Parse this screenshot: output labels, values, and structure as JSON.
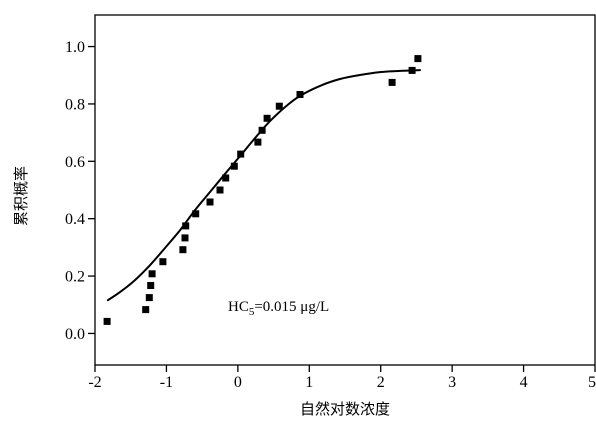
{
  "chart_data": {
    "type": "scatter",
    "xlabel": "自然对数浓度",
    "ylabel": "累积概率",
    "xlim": [
      -2,
      5
    ],
    "ylim": [
      -0.11,
      1.11
    ],
    "xticks": [
      "-2",
      "-1",
      "0",
      "1",
      "2",
      "3",
      "4",
      "5"
    ],
    "yticks": [
      "0.0",
      "0.2",
      "0.4",
      "0.6",
      "0.8",
      "1.0"
    ],
    "grid": false,
    "annotation": {
      "main": "HC",
      "subscript": "5",
      "rest": "=0.015 μg/L"
    },
    "series": [
      {
        "type": "scatter",
        "x": [
          -1.83,
          -1.29,
          -1.24,
          -1.22,
          -1.2,
          -1.05,
          -0.77,
          -0.74,
          -0.73,
          -0.59,
          -0.39,
          -0.25,
          -0.17,
          -0.05,
          0.04,
          0.28,
          0.34,
          0.41,
          0.58,
          0.87,
          2.16,
          2.44,
          2.52
        ],
        "y": [
          0.042,
          0.083,
          0.125,
          0.167,
          0.208,
          0.25,
          0.292,
          0.333,
          0.375,
          0.417,
          0.458,
          0.5,
          0.542,
          0.583,
          0.625,
          0.667,
          0.708,
          0.75,
          0.792,
          0.833,
          0.875,
          0.917,
          0.958
        ]
      },
      {
        "type": "line",
        "x": [
          -1.82,
          -1.65,
          -1.44,
          -1.23,
          -1.02,
          -0.81,
          -0.6,
          -0.39,
          -0.18,
          0.03,
          0.24,
          0.45,
          0.66,
          0.87,
          1.15,
          1.43,
          1.71,
          1.99,
          2.27,
          2.55
        ],
        "y": [
          0.116,
          0.144,
          0.186,
          0.238,
          0.298,
          0.36,
          0.43,
          0.493,
          0.556,
          0.618,
          0.681,
          0.74,
          0.789,
          0.828,
          0.863,
          0.887,
          0.901,
          0.911,
          0.915,
          0.918
        ]
      }
    ]
  },
  "colors": {
    "marks": "#000000",
    "axes": "#000000",
    "background": "#ffffff"
  }
}
